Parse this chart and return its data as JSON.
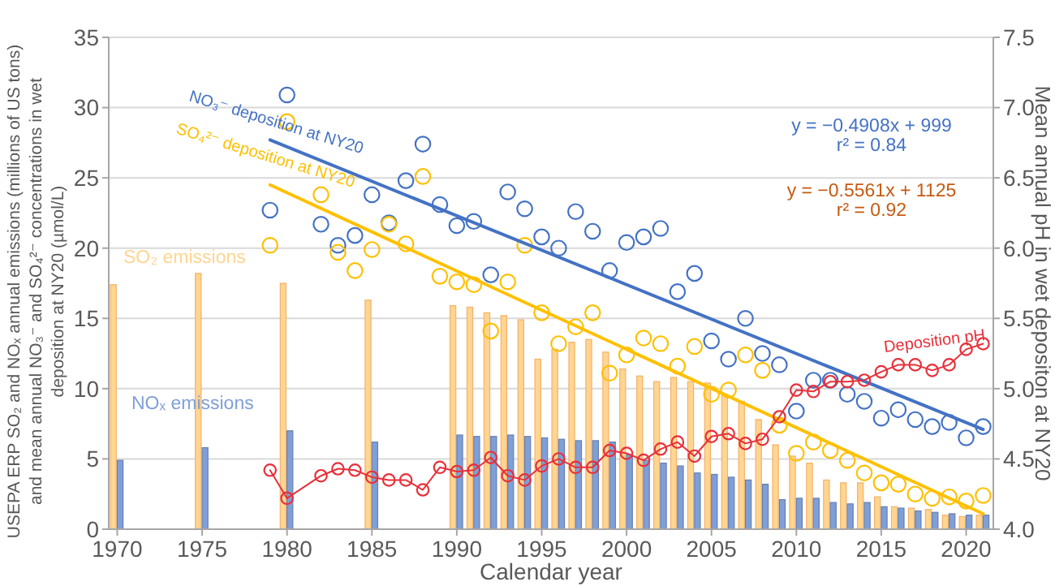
{
  "chart_data": {
    "type": "bar",
    "xlabel": "Calendar year",
    "ylabel": "USEPA ERP SO₂ and NOₓ annual emissions (millions of US tons) and mean annual NO₃⁻ and SO₄²⁻ concentrations in wet deposition at NY20 (µmol/L)",
    "y2label": "Mean annual pH in wet depositon at NY20",
    "xlim": [
      1969.5,
      2021.6
    ],
    "xticks": [
      1970,
      1975,
      1980,
      1985,
      1990,
      1995,
      2000,
      2005,
      2010,
      2015,
      2020
    ],
    "ylim": [
      0,
      35
    ],
    "yticks": [
      0,
      5,
      10,
      15,
      20,
      25,
      30,
      35
    ],
    "y2lim": [
      4.0,
      7.5
    ],
    "y2ticks": [
      {
        "value": 4.0,
        "label": "4.0"
      },
      {
        "value": 4.5,
        "label": "4.5"
      },
      {
        "value": 5.0,
        "label": "5.0"
      },
      {
        "value": 5.5,
        "label": "5.5"
      },
      {
        "value": 6.0,
        "label": "6.0"
      },
      {
        "value": 6.5,
        "label": "6.5"
      },
      {
        "value": 7.0,
        "label": "7.0"
      },
      {
        "value": 7.5,
        "label": "7.5"
      }
    ],
    "grid": "y",
    "legend": false,
    "annotations": [
      "y = −0.4908x + 999",
      "r² = 0.84",
      "y = −0.5561x + 1125",
      "r² = 0.92"
    ],
    "series": [
      {
        "name": "SO₂ emissions",
        "color": "#ffd591",
        "x": [
          1970,
          1975,
          1980,
          1985,
          1990,
          1991,
          1992,
          1993,
          1994,
          1995,
          1996,
          1997,
          1998,
          1999,
          2000,
          2001,
          2002,
          2003,
          2004,
          2005,
          2006,
          2007,
          2008,
          2009,
          2010,
          2011,
          2012,
          2013,
          2014,
          2015,
          2016,
          2017,
          2018,
          2019,
          2020,
          2021
        ],
        "values": [
          17.4,
          18.2,
          17.5,
          16.3,
          15.9,
          15.8,
          15.4,
          15.2,
          14.9,
          12.1,
          12.8,
          13.3,
          13.5,
          12.6,
          11.4,
          10.9,
          10.5,
          10.8,
          10.5,
          10.4,
          9.6,
          9.1,
          7.8,
          6.0,
          5.2,
          4.7,
          3.5,
          3.3,
          3.3,
          2.3,
          1.6,
          1.5,
          1.4,
          1.0,
          0.9,
          1.0
        ]
      },
      {
        "name": "NOₓ emissions",
        "color": "#7f9fd9",
        "x": [
          1970,
          1975,
          1980,
          1985,
          1990,
          1991,
          1992,
          1993,
          1994,
          1995,
          1996,
          1997,
          1998,
          1999,
          2000,
          2001,
          2002,
          2003,
          2004,
          2005,
          2006,
          2007,
          2008,
          2009,
          2010,
          2011,
          2012,
          2013,
          2014,
          2015,
          2016,
          2017,
          2018,
          2019,
          2020,
          2021
        ],
        "values": [
          4.9,
          5.8,
          7.0,
          6.2,
          6.7,
          6.6,
          6.6,
          6.7,
          6.6,
          6.5,
          6.4,
          6.3,
          6.3,
          6.2,
          5.3,
          4.9,
          4.7,
          4.5,
          4.0,
          3.9,
          3.7,
          3.5,
          3.2,
          2.1,
          2.2,
          2.2,
          1.9,
          1.8,
          1.9,
          1.6,
          1.5,
          1.3,
          1.2,
          1.1,
          1.0,
          1.0
        ]
      },
      {
        "type": "scatter",
        "name": "NO₃⁻ deposition at NY20",
        "color": "#4472c4",
        "marker": "circle",
        "x": [
          1979,
          1980,
          1982,
          1983,
          1984,
          1985,
          1986,
          1987,
          1988,
          1989,
          1990,
          1991,
          1992,
          1993,
          1994,
          1995,
          1996,
          1997,
          1998,
          1999,
          2000,
          2001,
          2002,
          2003,
          2004,
          2005,
          2006,
          2007,
          2008,
          2009,
          2010,
          2011,
          2012,
          2013,
          2014,
          2015,
          2016,
          2017,
          2018,
          2019,
          2020,
          2021
        ],
        "values": [
          22.7,
          30.9,
          21.7,
          20.2,
          20.9,
          23.8,
          21.8,
          24.8,
          27.4,
          23.1,
          21.6,
          21.9,
          18.1,
          24.0,
          22.8,
          20.8,
          20.0,
          22.6,
          21.2,
          18.4,
          20.4,
          20.8,
          21.4,
          16.9,
          18.2,
          13.4,
          12.1,
          15.0,
          12.5,
          11.7,
          8.4,
          10.6,
          10.6,
          9.6,
          9.1,
          7.9,
          8.5,
          7.8,
          7.3,
          7.6,
          6.5,
          7.3
        ]
      },
      {
        "type": "scatter",
        "name": "SO₄²⁻ deposition at NY20",
        "color": "#ffc000",
        "marker": "circle",
        "x": [
          1979,
          1980,
          1982,
          1983,
          1984,
          1985,
          1986,
          1987,
          1988,
          1989,
          1990,
          1991,
          1992,
          1993,
          1994,
          1995,
          1996,
          1997,
          1998,
          1999,
          2000,
          2001,
          2002,
          2003,
          2004,
          2005,
          2006,
          2007,
          2008,
          2009,
          2010,
          2011,
          2012,
          2013,
          2014,
          2015,
          2016,
          2017,
          2018,
          2019,
          2020,
          2021
        ],
        "values": [
          20.2,
          29.0,
          23.8,
          19.7,
          18.4,
          19.9,
          21.7,
          20.3,
          25.1,
          18.0,
          17.6,
          17.4,
          14.1,
          17.6,
          20.2,
          15.4,
          13.2,
          14.4,
          15.4,
          11.1,
          12.4,
          13.6,
          13.2,
          11.6,
          13.0,
          9.6,
          9.9,
          12.4,
          11.3,
          7.4,
          5.4,
          6.2,
          5.6,
          4.9,
          4.0,
          3.3,
          3.2,
          2.5,
          2.2,
          2.3,
          2.0,
          2.4
        ]
      },
      {
        "type": "line",
        "color": "#4472c4",
        "marker": "none",
        "x": [
          1979,
          2021
        ],
        "values": [
          27.7,
          7.1
        ]
      },
      {
        "type": "line",
        "color": "#ffc000",
        "marker": "none",
        "x": [
          1979,
          2021
        ],
        "values": [
          24.5,
          1.1
        ]
      },
      {
        "type": "line",
        "name": "Deposition pH",
        "axis": "y2",
        "color": "#e8303a",
        "marker": "circle",
        "x": [
          1979,
          1980,
          1982,
          1983,
          1984,
          1985,
          1986,
          1987,
          1988,
          1989,
          1990,
          1991,
          1992,
          1993,
          1994,
          1995,
          1996,
          1997,
          1998,
          1999,
          2000,
          2001,
          2002,
          2003,
          2004,
          2005,
          2006,
          2007,
          2008,
          2009,
          2010,
          2011,
          2012,
          2013,
          2014,
          2015,
          2016,
          2017,
          2018,
          2019,
          2020,
          2021
        ],
        "values": [
          4.42,
          4.22,
          4.38,
          4.43,
          4.42,
          4.37,
          4.35,
          4.35,
          4.28,
          4.44,
          4.41,
          4.42,
          4.51,
          4.38,
          4.35,
          4.45,
          4.5,
          4.44,
          4.44,
          4.56,
          4.54,
          4.49,
          4.57,
          4.62,
          4.52,
          4.66,
          4.68,
          4.61,
          4.64,
          4.8,
          4.99,
          4.98,
          5.05,
          5.05,
          5.06,
          5.12,
          5.17,
          5.17,
          5.13,
          5.17,
          5.28,
          5.32
        ]
      }
    ]
  }
}
